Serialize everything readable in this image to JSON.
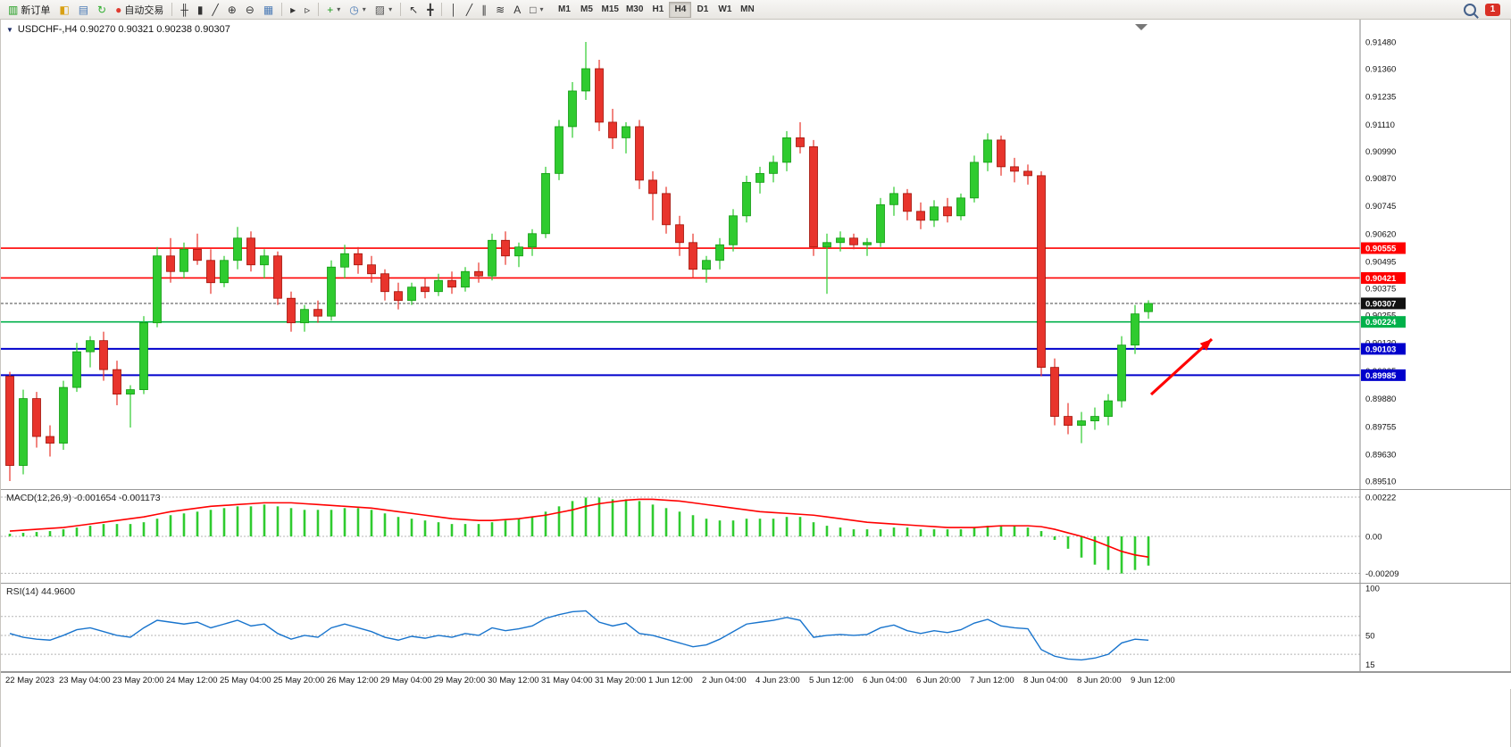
{
  "toolbar": {
    "buttons": [
      {
        "name": "new-order-button",
        "glyph": "▥",
        "color": "#1a9c1a",
        "label": "新订单"
      },
      {
        "name": "market-watch-button",
        "glyph": "◧",
        "color": "#d8a013"
      },
      {
        "name": "data-window-button",
        "glyph": "▤",
        "color": "#4a7ab5"
      },
      {
        "name": "refresh-button",
        "glyph": "↻",
        "color": "#2fae2f"
      },
      {
        "name": "autotrade-button",
        "glyph": "●",
        "color": "#e03c31",
        "label": "自动交易"
      },
      {
        "sep": true
      },
      {
        "name": "bar-chart-button",
        "glyph": "╫",
        "color": "#333333"
      },
      {
        "name": "candlestick-chart-button",
        "glyph": "▮",
        "color": "#333333"
      },
      {
        "name": "line-chart-button",
        "glyph": "╱",
        "color": "#333333"
      },
      {
        "name": "zoom-in-button",
        "glyph": "⊕",
        "color": "#333333"
      },
      {
        "name": "zoom-out-button",
        "glyph": "⊖",
        "color": "#333333"
      },
      {
        "name": "tile-windows-button",
        "glyph": "▦",
        "color": "#4a7ab5"
      },
      {
        "sep": true
      },
      {
        "name": "auto-scroll-button",
        "glyph": "▸",
        "color": "#333333"
      },
      {
        "name": "chart-shift-button",
        "glyph": "▹",
        "color": "#333333"
      },
      {
        "sep": true
      },
      {
        "name": "indicators-button",
        "glyph": "+",
        "color": "#1a9c1a",
        "dropdown": true
      },
      {
        "name": "periods-button",
        "glyph": "◷",
        "color": "#4a7ab5",
        "dropdown": true
      },
      {
        "name": "templates-button",
        "glyph": "▨",
        "color": "#555555",
        "dropdown": true
      },
      {
        "sep": true
      },
      {
        "name": "cursor-button",
        "glyph": "↖",
        "color": "#333333"
      },
      {
        "name": "crosshair-button",
        "glyph": "╋",
        "color": "#333333"
      },
      {
        "sep": true
      },
      {
        "name": "vertical-line-button",
        "glyph": "│",
        "color": "#333333"
      },
      {
        "name": "trendline-button",
        "glyph": "╱",
        "color": "#333333"
      },
      {
        "name": "channel-button",
        "glyph": "∥",
        "color": "#333333"
      },
      {
        "name": "fibonacci-button",
        "glyph": "≋",
        "color": "#333333"
      },
      {
        "name": "text-button",
        "glyph": "A",
        "color": "#333333"
      },
      {
        "name": "shapes-button",
        "glyph": "□",
        "color": "#333333",
        "dropdown": true
      }
    ],
    "timeframes": {
      "items": [
        "M1",
        "M5",
        "M15",
        "M30",
        "H1",
        "H4",
        "D1",
        "W1",
        "MN"
      ],
      "active": "H4"
    },
    "notification_count": "1"
  },
  "chart": {
    "title": "USDCHF-,H4  0.90270 0.90321 0.90238 0.90307",
    "symbol": "USDCHF-",
    "period": "H4",
    "ohlc": {
      "open": "0.90270",
      "high": "0.90321",
      "low": "0.90238",
      "close": "0.90307"
    },
    "price_axis": [
      "0.91480",
      "0.91360",
      "0.91235",
      "0.91110",
      "0.90990",
      "0.90870",
      "0.90745",
      "0.90620",
      "0.90495",
      "0.90375",
      "0.90255",
      "0.90130",
      "0.90005",
      "0.89880",
      "0.89755",
      "0.89630",
      "0.89510"
    ],
    "levels": [
      {
        "price": 0.90555,
        "label": "0.90555",
        "color": "#ff0000",
        "width": 1.6
      },
      {
        "price": 0.90421,
        "label": "0.90421",
        "color": "#ff0000",
        "width": 1.6
      },
      {
        "price": 0.90224,
        "label": "0.90224",
        "color": "#00b14a",
        "width": 1.6
      },
      {
        "price": 0.90103,
        "label": "0.90103",
        "color": "#0000cc",
        "width": 2
      },
      {
        "price": 0.89985,
        "label": "0.89985",
        "color": "#0000cc",
        "width": 2
      }
    ],
    "current_price": {
      "price": 0.90307,
      "label": "0.90307",
      "color": "#111111"
    }
  },
  "chart_data": {
    "type": "candlestick",
    "title": "USDCHF- H4",
    "ylim": [
      0.8951,
      0.9148
    ],
    "colors": {
      "up": "#2fcb2f",
      "up_border": "#119a11",
      "down": "#e8342c",
      "down_border": "#a01208"
    },
    "bars_per_label": 4,
    "x_labels": [
      "22 May 2023",
      "23 May 04:00",
      "23 May 20:00",
      "24 May 12:00",
      "25 May 04:00",
      "25 May 20:00",
      "26 May 12:00",
      "29 May 04:00",
      "29 May 20:00",
      "30 May 12:00",
      "31 May 04:00",
      "31 May 20:00",
      "1 Jun 12:00",
      "2 Jun 04:00",
      "4 Jun 23:00",
      "5 Jun 12:00",
      "6 Jun 04:00",
      "6 Jun 20:00",
      "7 Jun 12:00",
      "8 Jun 04:00",
      "8 Jun 20:00",
      "9 Jun 12:00"
    ],
    "candles": [
      [
        0.8998,
        0.9,
        0.8951,
        0.8958
      ],
      [
        0.8958,
        0.8992,
        0.8954,
        0.8988
      ],
      [
        0.8988,
        0.8991,
        0.8966,
        0.8971
      ],
      [
        0.8971,
        0.8976,
        0.8962,
        0.8968
      ],
      [
        0.8968,
        0.8996,
        0.8965,
        0.8993
      ],
      [
        0.8993,
        0.9013,
        0.8991,
        0.9009
      ],
      [
        0.9009,
        0.9016,
        0.9002,
        0.9014
      ],
      [
        0.9014,
        0.9018,
        0.8996,
        0.9001
      ],
      [
        0.9001,
        0.9005,
        0.8985,
        0.899
      ],
      [
        0.899,
        0.8994,
        0.8975,
        0.8992
      ],
      [
        0.8992,
        0.9025,
        0.899,
        0.9022
      ],
      [
        0.9022,
        0.9056,
        0.902,
        0.9052
      ],
      [
        0.9052,
        0.906,
        0.904,
        0.9045
      ],
      [
        0.9045,
        0.9058,
        0.9042,
        0.9055
      ],
      [
        0.9055,
        0.9062,
        0.9048,
        0.905
      ],
      [
        0.905,
        0.9055,
        0.9035,
        0.904
      ],
      [
        0.904,
        0.9052,
        0.9038,
        0.905
      ],
      [
        0.905,
        0.9065,
        0.9046,
        0.906
      ],
      [
        0.906,
        0.9063,
        0.9045,
        0.9048
      ],
      [
        0.9048,
        0.9055,
        0.9042,
        0.9052
      ],
      [
        0.9052,
        0.9054,
        0.903,
        0.9033
      ],
      [
        0.9033,
        0.9036,
        0.9018,
        0.9022
      ],
      [
        0.9022,
        0.903,
        0.9018,
        0.9028
      ],
      [
        0.9028,
        0.9032,
        0.9022,
        0.9025
      ],
      [
        0.9025,
        0.905,
        0.9023,
        0.9047
      ],
      [
        0.9047,
        0.9057,
        0.9042,
        0.9053
      ],
      [
        0.9053,
        0.9056,
        0.9044,
        0.9048
      ],
      [
        0.9048,
        0.9052,
        0.904,
        0.9044
      ],
      [
        0.9044,
        0.9046,
        0.9032,
        0.9036
      ],
      [
        0.9036,
        0.904,
        0.9028,
        0.9032
      ],
      [
        0.9032,
        0.904,
        0.903,
        0.9038
      ],
      [
        0.9038,
        0.9042,
        0.9033,
        0.9036
      ],
      [
        0.9036,
        0.9044,
        0.9034,
        0.9041
      ],
      [
        0.9041,
        0.9045,
        0.9035,
        0.9038
      ],
      [
        0.9038,
        0.9047,
        0.9036,
        0.9045
      ],
      [
        0.9045,
        0.9049,
        0.904,
        0.9043
      ],
      [
        0.9043,
        0.9062,
        0.9041,
        0.9059
      ],
      [
        0.9059,
        0.9063,
        0.9048,
        0.9052
      ],
      [
        0.9052,
        0.9058,
        0.9047,
        0.9056
      ],
      [
        0.9056,
        0.9064,
        0.9052,
        0.9062
      ],
      [
        0.9062,
        0.9092,
        0.906,
        0.9089
      ],
      [
        0.9089,
        0.9113,
        0.9086,
        0.911
      ],
      [
        0.911,
        0.913,
        0.9105,
        0.9126
      ],
      [
        0.9126,
        0.9148,
        0.9122,
        0.9136
      ],
      [
        0.9136,
        0.914,
        0.9108,
        0.9112
      ],
      [
        0.9112,
        0.9118,
        0.91,
        0.9105
      ],
      [
        0.9105,
        0.9112,
        0.9098,
        0.911
      ],
      [
        0.911,
        0.9113,
        0.9082,
        0.9086
      ],
      [
        0.9086,
        0.909,
        0.9068,
        0.908
      ],
      [
        0.908,
        0.9083,
        0.9062,
        0.9066
      ],
      [
        0.9066,
        0.907,
        0.9052,
        0.9058
      ],
      [
        0.9058,
        0.9062,
        0.9042,
        0.9046
      ],
      [
        0.9046,
        0.9052,
        0.904,
        0.905
      ],
      [
        0.905,
        0.906,
        0.9046,
        0.9057
      ],
      [
        0.9057,
        0.9073,
        0.9054,
        0.907
      ],
      [
        0.907,
        0.9088,
        0.9067,
        0.9085
      ],
      [
        0.9085,
        0.9092,
        0.908,
        0.9089
      ],
      [
        0.9089,
        0.9097,
        0.9085,
        0.9094
      ],
      [
        0.9094,
        0.9108,
        0.909,
        0.9105
      ],
      [
        0.9105,
        0.9112,
        0.9098,
        0.9101
      ],
      [
        0.9101,
        0.9104,
        0.9052,
        0.9056
      ],
      [
        0.9056,
        0.9062,
        0.9035,
        0.9058
      ],
      [
        0.9058,
        0.9063,
        0.9054,
        0.906
      ],
      [
        0.906,
        0.9062,
        0.9055,
        0.9057
      ],
      [
        0.9057,
        0.906,
        0.9052,
        0.9058
      ],
      [
        0.9058,
        0.9078,
        0.9056,
        0.9075
      ],
      [
        0.9075,
        0.9083,
        0.907,
        0.908
      ],
      [
        0.908,
        0.9082,
        0.9068,
        0.9072
      ],
      [
        0.9072,
        0.9076,
        0.9064,
        0.9068
      ],
      [
        0.9068,
        0.9077,
        0.9065,
        0.9074
      ],
      [
        0.9074,
        0.9078,
        0.9067,
        0.907
      ],
      [
        0.907,
        0.908,
        0.9068,
        0.9078
      ],
      [
        0.9078,
        0.9097,
        0.9076,
        0.9094
      ],
      [
        0.9094,
        0.9107,
        0.909,
        0.9104
      ],
      [
        0.9104,
        0.9106,
        0.9088,
        0.9092
      ],
      [
        0.9092,
        0.9096,
        0.9085,
        0.909
      ],
      [
        0.909,
        0.9093,
        0.9084,
        0.9088
      ],
      [
        0.9088,
        0.909,
        0.8998,
        0.9002
      ],
      [
        0.9002,
        0.9006,
        0.8976,
        0.898
      ],
      [
        0.898,
        0.8986,
        0.8972,
        0.8976
      ],
      [
        0.8976,
        0.8982,
        0.8968,
        0.8978
      ],
      [
        0.8978,
        0.8984,
        0.8974,
        0.898
      ],
      [
        0.898,
        0.899,
        0.8976,
        0.8987
      ],
      [
        0.8987,
        0.9016,
        0.8984,
        0.9012
      ],
      [
        0.9012,
        0.903,
        0.9008,
        0.9026
      ],
      [
        0.9027,
        0.90321,
        0.90238,
        0.90307
      ]
    ],
    "indicators": {
      "macd": {
        "label": "MACD(12,26,9) -0.001654 -0.001173",
        "axis": [
          "0.00222",
          "0.00",
          "-0.00209"
        ],
        "ylim": [
          -0.00209,
          0.00222
        ],
        "value_scale": 0.0001,
        "histogram": [
          1.5,
          2,
          2.5,
          3,
          4,
          5,
          6,
          7,
          7,
          7,
          8,
          10,
          12,
          13,
          14,
          15,
          16,
          17,
          17,
          18,
          17,
          16,
          15,
          15,
          15,
          16,
          16,
          15,
          13,
          11,
          10,
          9,
          8,
          7,
          7,
          7,
          8,
          9,
          10,
          11,
          14,
          17,
          20,
          22,
          22,
          21,
          21,
          20,
          18,
          16,
          14,
          12,
          10,
          9,
          9,
          10,
          10,
          10,
          11,
          11,
          8,
          6,
          5,
          4,
          4,
          4,
          5,
          5,
          4,
          4,
          4,
          4,
          5,
          6,
          6,
          6,
          5,
          3,
          -2,
          -7,
          -12,
          -16,
          -19,
          -21,
          -19,
          -16.54
        ],
        "signal": [
          3,
          3.5,
          4,
          4.5,
          5,
          6,
          7,
          8,
          9,
          10,
          11,
          12.5,
          14,
          15,
          16,
          17,
          17.5,
          18,
          18.5,
          19,
          19,
          19,
          18.5,
          18,
          17.5,
          17,
          16.5,
          16,
          15,
          14,
          13,
          12,
          11,
          10,
          9.5,
          9,
          9,
          9.5,
          10,
          11,
          12,
          13.5,
          15,
          17,
          18.5,
          19.5,
          20.5,
          21,
          21,
          20.5,
          20,
          19,
          18,
          17,
          16,
          15,
          14,
          13.5,
          13,
          12.5,
          12,
          11,
          10,
          9,
          8,
          7.5,
          7,
          6.5,
          6,
          5.5,
          5,
          5,
          5,
          5.5,
          6,
          6,
          6,
          5.5,
          4,
          2,
          0,
          -2.5,
          -5.5,
          -8.5,
          -10.5,
          -11.73
        ],
        "colors": {
          "histogram": "#2fcb2f",
          "signal": "#ff0000"
        }
      },
      "rsi": {
        "label": "RSI(14) 44.9600",
        "axis": [
          "100",
          "50",
          "15"
        ],
        "levels": [
          70,
          50,
          30
        ],
        "values": [
          52,
          48,
          46,
          45,
          50,
          56,
          58,
          54,
          50,
          48,
          58,
          66,
          64,
          62,
          64,
          58,
          62,
          66,
          60,
          62,
          52,
          46,
          50,
          48,
          58,
          62,
          58,
          54,
          48,
          45,
          49,
          47,
          50,
          48,
          52,
          50,
          58,
          55,
          57,
          60,
          68,
          72,
          75,
          76,
          64,
          60,
          63,
          52,
          50,
          46,
          42,
          38,
          40,
          46,
          54,
          62,
          64,
          66,
          69,
          66,
          48,
          50,
          51,
          50,
          51,
          58,
          61,
          55,
          52,
          55,
          53,
          56,
          63,
          67,
          60,
          58,
          57,
          35,
          28,
          25,
          24,
          26,
          30,
          42,
          46,
          44.96
        ],
        "colors": {
          "line": "#1874cd"
        }
      }
    }
  },
  "annotations": [
    {
      "type": "arrow",
      "color": "#ff0000",
      "from": [
        1288,
        420
      ],
      "to": [
        1356,
        358
      ]
    }
  ]
}
